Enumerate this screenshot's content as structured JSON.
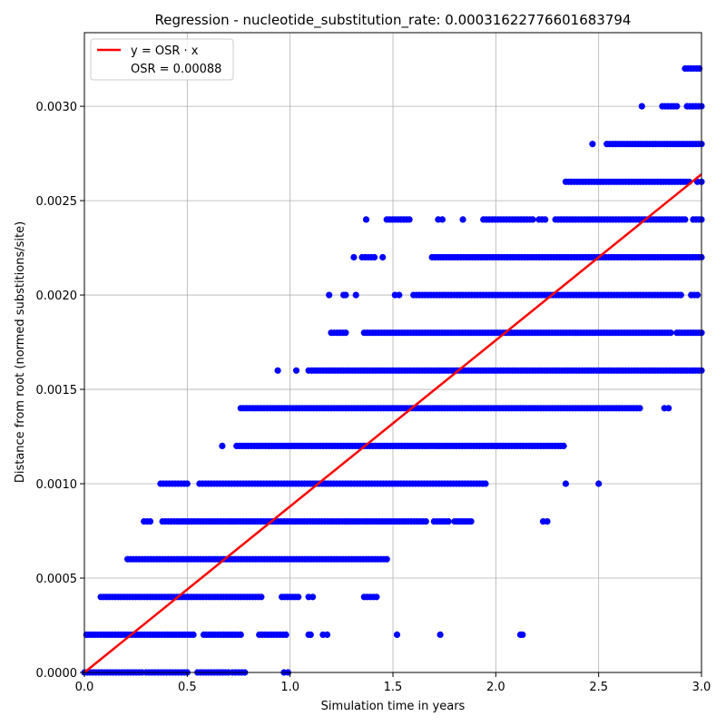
{
  "chart_data": {
    "type": "scatter",
    "title": "Regression - nucleotide_substitution_rate: 0.00031622776601683794",
    "xlabel": "Simulation time in years",
    "ylabel": "Distance from root (normed substitions/site)",
    "xlim": [
      0.0,
      3.0
    ],
    "ylim": [
      0.0,
      0.00339
    ],
    "x_ticks": [
      "0.0",
      "0.5",
      "1.0",
      "1.5",
      "2.0",
      "2.5",
      "3.0"
    ],
    "y_ticks": [
      "0.0000",
      "0.0005",
      "0.0010",
      "0.0015",
      "0.0020",
      "0.0025",
      "0.0030"
    ],
    "grid": true,
    "legend_position": "upper-left",
    "legend": {
      "line_label": "y = OSR · x",
      "osr_label": "OSR = 0.00088"
    },
    "regression": {
      "slope": 0.00088,
      "color": "#ff0000"
    },
    "point_color": "#0000ff",
    "point_bands": [
      {
        "y": 0.0,
        "x_segments": [
          [
            0.0,
            0.28
          ],
          [
            0.3,
            0.5
          ],
          [
            0.55,
            0.7
          ],
          [
            0.72,
            0.78
          ],
          [
            0.97,
            0.99
          ]
        ]
      },
      {
        "y": 0.0002,
        "x_segments": [
          [
            0.01,
            0.53
          ],
          [
            0.58,
            0.76
          ],
          [
            0.85,
            0.98
          ],
          [
            1.09,
            1.1
          ],
          [
            1.16,
            1.18
          ],
          [
            1.52,
            1.52
          ],
          [
            1.73,
            1.73
          ],
          [
            2.12,
            2.13
          ]
        ]
      },
      {
        "y": 0.0004,
        "x_segments": [
          [
            0.08,
            0.86
          ],
          [
            0.96,
            1.04
          ],
          [
            1.09,
            1.11
          ],
          [
            1.36,
            1.42
          ]
        ]
      },
      {
        "y": 0.0006,
        "x_segments": [
          [
            0.21,
            1.47
          ]
        ]
      },
      {
        "y": 0.0008,
        "x_segments": [
          [
            0.29,
            0.32
          ],
          [
            0.38,
            1.66
          ],
          [
            1.7,
            1.77
          ],
          [
            1.8,
            1.88
          ],
          [
            2.23,
            2.25
          ]
        ]
      },
      {
        "y": 0.001,
        "x_segments": [
          [
            0.37,
            0.5
          ],
          [
            0.56,
            1.95
          ],
          [
            2.34,
            2.34
          ],
          [
            2.5,
            2.5
          ]
        ]
      },
      {
        "y": 0.0012,
        "x_segments": [
          [
            0.67,
            0.67
          ],
          [
            0.74,
            2.33
          ]
        ]
      },
      {
        "y": 0.0014,
        "x_segments": [
          [
            0.76,
            2.7
          ],
          [
            2.82,
            2.84
          ]
        ]
      },
      {
        "y": 0.0016,
        "x_segments": [
          [
            0.94,
            0.94
          ],
          [
            1.03,
            1.03
          ],
          [
            1.09,
            3.0
          ]
        ]
      },
      {
        "y": 0.0018,
        "x_segments": [
          [
            1.2,
            1.27
          ],
          [
            1.36,
            2.85
          ],
          [
            2.88,
            3.0
          ]
        ]
      },
      {
        "y": 0.002,
        "x_segments": [
          [
            1.19,
            1.19
          ],
          [
            1.26,
            1.27
          ],
          [
            1.32,
            1.32
          ],
          [
            1.51,
            1.53
          ],
          [
            1.6,
            2.9
          ],
          [
            2.95,
            2.98
          ]
        ]
      },
      {
        "y": 0.0022,
        "x_segments": [
          [
            1.31,
            1.31
          ],
          [
            1.35,
            1.41
          ],
          [
            1.45,
            1.45
          ],
          [
            1.69,
            3.0
          ]
        ]
      },
      {
        "y": 0.0024,
        "x_segments": [
          [
            1.37,
            1.37
          ],
          [
            1.47,
            1.58
          ],
          [
            1.72,
            1.74
          ],
          [
            1.84,
            1.84
          ],
          [
            1.94,
            2.18
          ],
          [
            2.21,
            2.24
          ],
          [
            2.29,
            2.92
          ],
          [
            2.96,
            3.0
          ]
        ]
      },
      {
        "y": 0.0026,
        "x_segments": [
          [
            2.34,
            2.94
          ],
          [
            2.98,
            3.0
          ]
        ]
      },
      {
        "y": 0.0028,
        "x_segments": [
          [
            2.47,
            2.47
          ],
          [
            2.54,
            3.0
          ]
        ]
      },
      {
        "y": 0.003,
        "x_segments": [
          [
            2.71,
            2.71
          ],
          [
            2.81,
            2.88
          ],
          [
            2.93,
            3.0
          ]
        ]
      },
      {
        "y": 0.0032,
        "x_segments": [
          [
            2.92,
            2.99
          ]
        ]
      }
    ]
  }
}
